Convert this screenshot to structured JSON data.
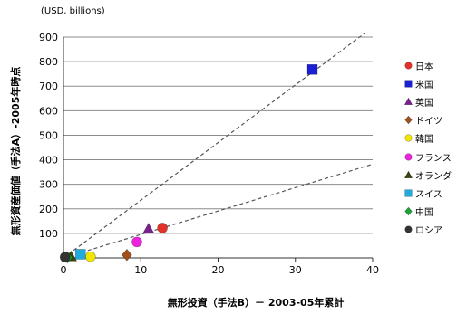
{
  "chart_data": {
    "type": "scatter",
    "unit_note": "(USD, billions)",
    "xlabel": "無形投資（手法B）－ 2003-05年累計",
    "ylabel": "無形資産価値（手法A）-2005年時点",
    "xlim": [
      0,
      40
    ],
    "ylim": [
      0,
      900
    ],
    "x_ticks": [
      "0",
      "10",
      "20",
      "30",
      "40"
    ],
    "y_ticks": [
      "100",
      "200",
      "300",
      "400",
      "500",
      "600",
      "700",
      "800",
      "900"
    ],
    "grid": "horizontal",
    "legend_position": "right",
    "series": [
      {
        "name": "日本",
        "x": 12.8,
        "y": 122,
        "color": "#e0312b",
        "marker": "circle"
      },
      {
        "name": "米国",
        "x": 32.2,
        "y": 768,
        "color": "#1b1fd6",
        "marker": "square"
      },
      {
        "name": "英国",
        "x": 11.0,
        "y": 118,
        "color": "#7a1f8e",
        "marker": "triangle"
      },
      {
        "name": "ドイツ",
        "x": 8.2,
        "y": 12,
        "color": "#a0501a",
        "marker": "diamond"
      },
      {
        "name": "韓国",
        "x": 3.5,
        "y": 5,
        "color": "#f2e600",
        "marker": "circle"
      },
      {
        "name": "フランス",
        "x": 9.5,
        "y": 65,
        "color": "#ee22dd",
        "marker": "circle"
      },
      {
        "name": "オランダ",
        "x": 1.0,
        "y": 5,
        "color": "#3a4510",
        "marker": "triangle"
      },
      {
        "name": "スイス",
        "x": 2.2,
        "y": 15,
        "color": "#22aadd",
        "marker": "square"
      },
      {
        "name": "中国",
        "x": 0.5,
        "y": 2,
        "color": "#1aa338",
        "marker": "diamond"
      },
      {
        "name": "ロシア",
        "x": 0.2,
        "y": 3,
        "color": "#333333",
        "marker": "circle"
      }
    ],
    "trendlines": [
      {
        "x": [
          0,
          40
        ],
        "y": [
          0,
          940
        ],
        "style": "dashed",
        "color": "#555555"
      },
      {
        "x": [
          0,
          40
        ],
        "y": [
          0,
          382
        ],
        "style": "dashed",
        "color": "#555555"
      }
    ]
  }
}
